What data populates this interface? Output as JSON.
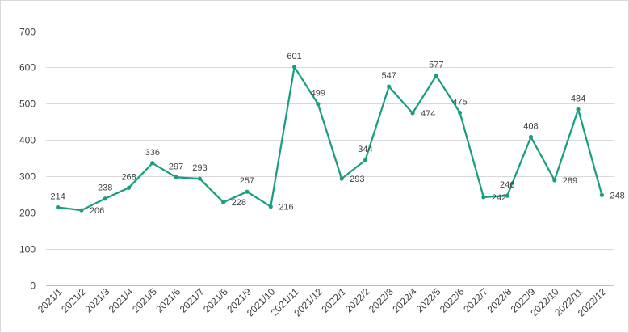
{
  "chart_data": {
    "type": "line",
    "title": "",
    "xlabel": "",
    "ylabel": "",
    "ylim": [
      0,
      700
    ],
    "yticks": [
      0,
      100,
      200,
      300,
      400,
      500,
      600,
      700
    ],
    "grid": "horizontal",
    "legend": "none",
    "categories": [
      "2021/1",
      "2021/2",
      "2021/3",
      "2021/4",
      "2021/5",
      "2021/6",
      "2021/7",
      "2021/8",
      "2021/9",
      "2021/10",
      "2021/11",
      "2021/12",
      "2022/1",
      "2022/2",
      "2022/3",
      "2022/4",
      "2022/5",
      "2022/6",
      "2022/7",
      "2022/8",
      "2022/9",
      "2022/10",
      "2022/11",
      "2022/12"
    ],
    "series": [
      {
        "values": [
          214,
          206,
          238,
          268,
          336,
          297,
          293,
          228,
          257,
          216,
          601,
          499,
          293,
          344,
          547,
          474,
          577,
          475,
          242,
          246,
          408,
          289,
          484,
          248
        ],
        "color": "#1a9e82"
      }
    ]
  }
}
